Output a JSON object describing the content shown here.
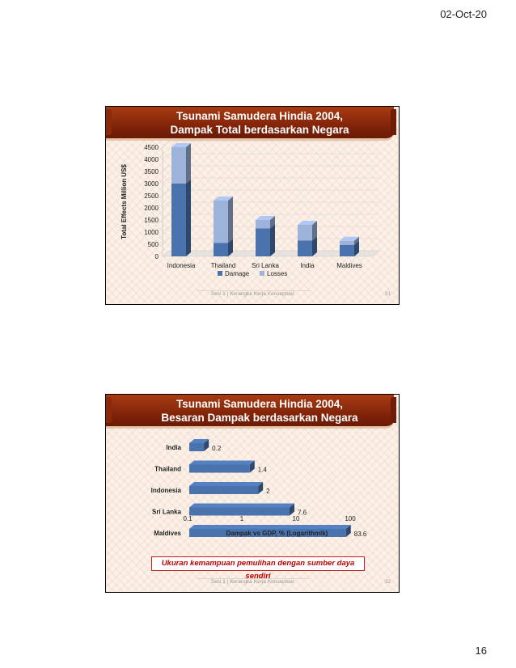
{
  "page": {
    "date": "02-Oct-20",
    "number": "16"
  },
  "slides": [
    {
      "title_line1": "Tsunami Samudera Hindia 2004,",
      "title_line2": "Dampak Total berdasarkan Negara",
      "footer": "Sesi 1 | Kerangka Kerja Konseptual",
      "slide_number": "31"
    },
    {
      "title_line1": "Tsunami Samudera Hindia 2004,",
      "title_line2": "Besaran Dampak berdasarkan Negara",
      "footer": "Sesi 1 | Kerangka Kerja Konseptual",
      "slide_number": "32",
      "callout": "Ukuran kemampuan pemulihan dengan sumber daya sendiri"
    }
  ],
  "colors": {
    "banner": "#7c2108",
    "damage": "#4a73ad",
    "losses": "#9db3d9",
    "callout_text": "#c00000"
  },
  "chart_data": [
    {
      "type": "bar",
      "stacked": true,
      "categories": [
        "Indonesia",
        "Thailand",
        "Sri Lanka",
        "India",
        "Maldives"
      ],
      "series": [
        {
          "name": "Damage",
          "values": [
            3000,
            550,
            1150,
            650,
            470
          ]
        },
        {
          "name": "Losses",
          "values": [
            1500,
            1750,
            350,
            650,
            170
          ]
        }
      ],
      "ylabel": "Total Effects  Million US$",
      "ylim": [
        0,
        4500
      ],
      "yticks": [
        "0",
        "500",
        "1000",
        "1500",
        "2000",
        "2500",
        "3000",
        "3500",
        "4000",
        "4500"
      ],
      "grid": true,
      "legend": "bottom"
    },
    {
      "type": "bar",
      "orientation": "horizontal",
      "categories": [
        "India",
        "Thailand",
        "Indonesia",
        "Sri Lanka",
        "Maldives"
      ],
      "values": [
        0.2,
        1.4,
        2,
        7.6,
        83.6
      ],
      "data_labels": [
        "0.2",
        "1.4",
        "2",
        "7.6",
        "83.6"
      ],
      "xlabel": "Dampak vs GDP, % (Logarithmik)",
      "xscale": "log",
      "xlim": [
        0.1,
        100
      ],
      "xticks": [
        "0.1",
        "1",
        "10",
        "100"
      ],
      "grid": false
    }
  ]
}
